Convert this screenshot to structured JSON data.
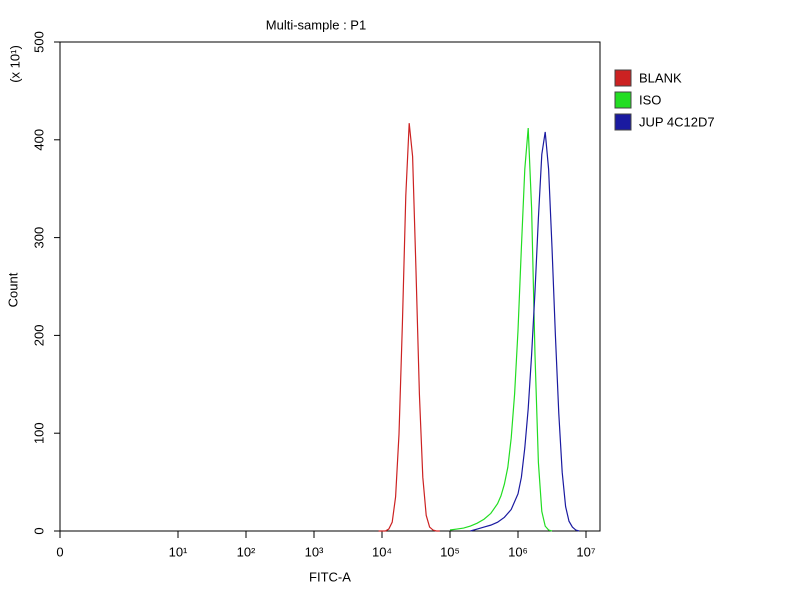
{
  "chart_data": {
    "type": "line",
    "title": "Multi-sample : P1",
    "x_label": "FITC-A",
    "y_label": "Count",
    "y_multiplier": "(x 10¹)",
    "xlim": [
      0,
      15500000
    ],
    "xscale": "biexponential",
    "xticks": [
      0,
      {
        "value": 10,
        "label": "10¹"
      },
      {
        "value": 100,
        "label": "10²"
      },
      {
        "value": 1000,
        "label": "10³"
      },
      {
        "value": 10000,
        "label": "10⁴"
      },
      {
        "value": 100000,
        "label": "10⁵"
      },
      {
        "value": 1000000,
        "label": "10⁶"
      },
      {
        "value": 10000000,
        "label": "10⁷"
      }
    ],
    "ylim": [
      0,
      500
    ],
    "yticks": [
      0,
      100,
      200,
      300,
      400,
      500
    ],
    "legend": "right",
    "series": [
      {
        "name": "BLANK",
        "color": "#cc2222",
        "x": [
          8913,
          10000,
          11220,
          12589,
          14125,
          15849,
          17783,
          19953,
          22387,
          25119,
          28184,
          31623,
          35481,
          39811,
          44668,
          50119,
          56234,
          63096,
          70795
        ],
        "values": [
          0,
          0,
          0,
          2,
          9,
          35,
          99,
          212,
          343,
          417,
          383,
          266,
          140,
          55,
          16,
          4,
          1,
          0,
          0
        ]
      },
      {
        "name": "ISO",
        "color": "#22dd22",
        "x": [
          100000,
          125893,
          158489,
          199526,
          251189,
          316228,
          398107,
          501187,
          562341,
          630957,
          707946,
          794328,
          891251,
          1000000,
          1122018,
          1258925,
          1412538,
          1584893,
          1778279,
          1995262,
          2238721,
          2511886,
          2818383,
          3162278
        ],
        "values": [
          1,
          2,
          3,
          5,
          8,
          12,
          18,
          28,
          36,
          48,
          65,
          95,
          140,
          205,
          290,
          370,
          412,
          330,
          180,
          70,
          20,
          5,
          1,
          0
        ]
      },
      {
        "name": "JUP 4C12D7",
        "color": "#1a1aa0",
        "x": [
          199526,
          251189,
          316228,
          398107,
          501187,
          630957,
          794328,
          1000000,
          1122018,
          1258925,
          1412538,
          1584893,
          1778279,
          1995262,
          2238721,
          2511886,
          2818383,
          3162278,
          3548134,
          3981072,
          4466836,
          5011872,
          5623413,
          6309573,
          7079458,
          7943282
        ],
        "values": [
          0,
          2,
          4,
          6,
          9,
          14,
          22,
          38,
          55,
          85,
          125,
          180,
          245,
          320,
          385,
          408,
          370,
          290,
          200,
          120,
          60,
          25,
          10,
          4,
          1,
          0
        ]
      }
    ]
  }
}
